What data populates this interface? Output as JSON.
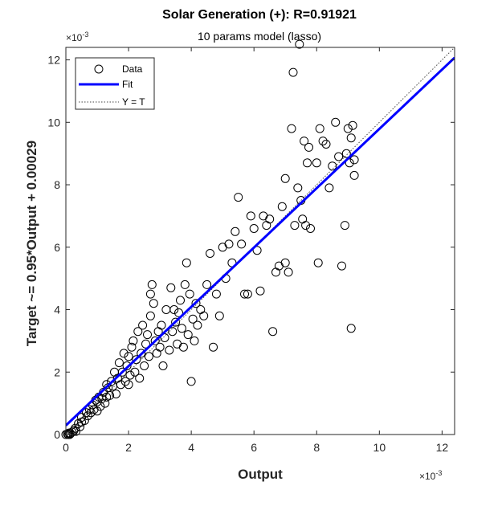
{
  "chart_data": {
    "type": "scatter",
    "title": "Solar Generation (+): R=0.91921",
    "subtitle": "10 params model (lasso)",
    "xlabel": "Output",
    "ylabel": "Target ~= 0.95*Output + 0.00029",
    "x_exponent_label": "×10",
    "x_exponent_power": "-3",
    "y_exponent_label": "×10",
    "y_exponent_power": "-3",
    "xlim": [
      0,
      12.4
    ],
    "ylim": [
      0,
      12.4
    ],
    "xticks": [
      0,
      2,
      4,
      6,
      8,
      10,
      12
    ],
    "yticks": [
      0,
      2,
      4,
      6,
      8,
      10,
      12
    ],
    "grid": false,
    "legend_position": "top-left",
    "legend": [
      {
        "label": "Data",
        "style": "circle-marker"
      },
      {
        "label": "Fit",
        "style": "line"
      },
      {
        "label": "Y = T",
        "style": "dotted-line"
      }
    ],
    "fit": {
      "slope": 0.95,
      "intercept": 0.29,
      "color": "#0000ff"
    },
    "identity_line": {
      "color": "#444444"
    },
    "marker_color": "#000000",
    "series": [
      {
        "name": "Data",
        "points": [
          [
            0.0,
            0.0
          ],
          [
            0.05,
            0.02
          ],
          [
            0.08,
            0.0
          ],
          [
            0.1,
            0.05
          ],
          [
            0.12,
            0.0
          ],
          [
            0.15,
            0.03
          ],
          [
            0.2,
            0.08
          ],
          [
            0.25,
            0.12
          ],
          [
            0.3,
            0.2
          ],
          [
            0.32,
            0.1
          ],
          [
            0.4,
            0.35
          ],
          [
            0.45,
            0.25
          ],
          [
            0.5,
            0.4
          ],
          [
            0.5,
            0.55
          ],
          [
            0.6,
            0.45
          ],
          [
            0.65,
            0.7
          ],
          [
            0.7,
            0.6
          ],
          [
            0.75,
            0.8
          ],
          [
            0.8,
            0.7
          ],
          [
            0.85,
            0.95
          ],
          [
            0.9,
            0.8
          ],
          [
            0.95,
            1.1
          ],
          [
            1.0,
            0.75
          ],
          [
            1.0,
            1.05
          ],
          [
            1.05,
            1.2
          ],
          [
            1.1,
            0.9
          ],
          [
            1.15,
            1.15
          ],
          [
            1.2,
            1.35
          ],
          [
            1.25,
            1.0
          ],
          [
            1.3,
            1.6
          ],
          [
            1.3,
            1.2
          ],
          [
            1.35,
            1.5
          ],
          [
            1.4,
            1.25
          ],
          [
            1.45,
            1.7
          ],
          [
            1.5,
            1.55
          ],
          [
            1.55,
            2.0
          ],
          [
            1.6,
            1.3
          ],
          [
            1.65,
            1.8
          ],
          [
            1.7,
            2.3
          ],
          [
            1.75,
            1.6
          ],
          [
            1.8,
            2.0
          ],
          [
            1.85,
            2.6
          ],
          [
            1.9,
            1.7
          ],
          [
            1.95,
            2.2
          ],
          [
            2.0,
            1.6
          ],
          [
            2.0,
            2.5
          ],
          [
            2.05,
            1.9
          ],
          [
            2.1,
            2.8
          ],
          [
            2.15,
            3.0
          ],
          [
            2.2,
            2.0
          ],
          [
            2.25,
            2.4
          ],
          [
            2.3,
            3.3
          ],
          [
            2.35,
            1.8
          ],
          [
            2.4,
            2.6
          ],
          [
            2.45,
            3.5
          ],
          [
            2.5,
            2.2
          ],
          [
            2.55,
            2.9
          ],
          [
            2.6,
            3.2
          ],
          [
            2.65,
            2.5
          ],
          [
            2.7,
            3.8
          ],
          [
            2.7,
            4.5
          ],
          [
            2.75,
            4.8
          ],
          [
            2.8,
            4.2
          ],
          [
            2.85,
            3.0
          ],
          [
            2.9,
            2.6
          ],
          [
            2.95,
            3.3
          ],
          [
            3.0,
            2.8
          ],
          [
            3.05,
            3.5
          ],
          [
            3.1,
            2.2
          ],
          [
            3.15,
            3.1
          ],
          [
            3.2,
            4.0
          ],
          [
            3.3,
            2.7
          ],
          [
            3.35,
            4.7
          ],
          [
            3.4,
            3.3
          ],
          [
            3.45,
            4.0
          ],
          [
            3.5,
            3.6
          ],
          [
            3.55,
            2.9
          ],
          [
            3.6,
            3.9
          ],
          [
            3.65,
            4.3
          ],
          [
            3.7,
            3.4
          ],
          [
            3.75,
            2.8
          ],
          [
            3.8,
            4.8
          ],
          [
            3.85,
            5.5
          ],
          [
            3.9,
            3.2
          ],
          [
            3.95,
            4.5
          ],
          [
            4.0,
            1.7
          ],
          [
            4.05,
            3.7
          ],
          [
            4.1,
            3.0
          ],
          [
            4.15,
            4.2
          ],
          [
            4.2,
            3.5
          ],
          [
            4.3,
            4.0
          ],
          [
            4.4,
            3.8
          ],
          [
            4.5,
            4.8
          ],
          [
            4.6,
            5.8
          ],
          [
            4.7,
            2.8
          ],
          [
            4.8,
            4.5
          ],
          [
            4.9,
            3.8
          ],
          [
            5.0,
            6.0
          ],
          [
            5.1,
            5.0
          ],
          [
            5.2,
            6.1
          ],
          [
            5.3,
            5.5
          ],
          [
            5.4,
            6.5
          ],
          [
            5.5,
            7.6
          ],
          [
            5.6,
            6.1
          ],
          [
            5.7,
            4.5
          ],
          [
            5.8,
            4.5
          ],
          [
            5.9,
            7.0
          ],
          [
            6.0,
            6.6
          ],
          [
            6.1,
            5.9
          ],
          [
            6.2,
            4.6
          ],
          [
            6.3,
            7.0
          ],
          [
            6.4,
            6.7
          ],
          [
            6.5,
            6.9
          ],
          [
            6.6,
            3.3
          ],
          [
            6.7,
            5.2
          ],
          [
            6.8,
            5.4
          ],
          [
            6.9,
            7.3
          ],
          [
            7.0,
            8.2
          ],
          [
            7.0,
            5.5
          ],
          [
            7.1,
            5.2
          ],
          [
            7.2,
            9.8
          ],
          [
            7.25,
            11.6
          ],
          [
            7.3,
            6.7
          ],
          [
            7.4,
            7.9
          ],
          [
            7.45,
            12.5
          ],
          [
            7.5,
            7.5
          ],
          [
            7.55,
            6.9
          ],
          [
            7.6,
            9.4
          ],
          [
            7.65,
            6.7
          ],
          [
            7.7,
            8.7
          ],
          [
            7.75,
            9.2
          ],
          [
            7.8,
            6.6
          ],
          [
            8.0,
            8.7
          ],
          [
            8.05,
            5.5
          ],
          [
            8.1,
            9.8
          ],
          [
            8.2,
            9.4
          ],
          [
            8.3,
            9.3
          ],
          [
            8.4,
            7.9
          ],
          [
            8.5,
            8.6
          ],
          [
            8.6,
            10.0
          ],
          [
            8.7,
            8.9
          ],
          [
            8.8,
            5.4
          ],
          [
            8.9,
            6.7
          ],
          [
            8.95,
            9.0
          ],
          [
            9.0,
            9.8
          ],
          [
            9.05,
            8.7
          ],
          [
            9.1,
            9.5
          ],
          [
            9.1,
            3.4
          ],
          [
            9.15,
            9.9
          ],
          [
            9.2,
            8.3
          ],
          [
            9.2,
            8.8
          ]
        ]
      }
    ]
  }
}
